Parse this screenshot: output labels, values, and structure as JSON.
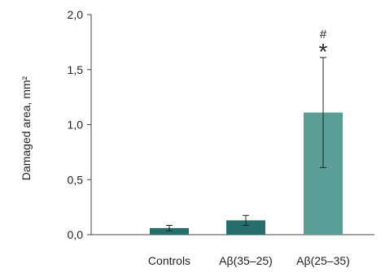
{
  "chart_data": {
    "type": "bar",
    "categories": [
      "Controls",
      "Aβ(35–25)",
      "Aβ(25–35)"
    ],
    "values": [
      0.06,
      0.13,
      1.11
    ],
    "errors": [
      0.025,
      0.045,
      0.5
    ],
    "ylabel": "Damaged area, mm²",
    "ylim": [
      0,
      2.0
    ],
    "yticks": [
      0,
      0.5,
      1.0,
      1.5,
      2.0
    ],
    "ytick_labels": [
      "0,0",
      "0,5",
      "1,0",
      "1,5",
      "2,0"
    ],
    "bar_colors": [
      "#256e6c",
      "#256e6c",
      "#5b9e98"
    ],
    "grid": false,
    "annotations": [
      {
        "category_index": 2,
        "symbols": [
          "#",
          "*"
        ]
      }
    ]
  }
}
